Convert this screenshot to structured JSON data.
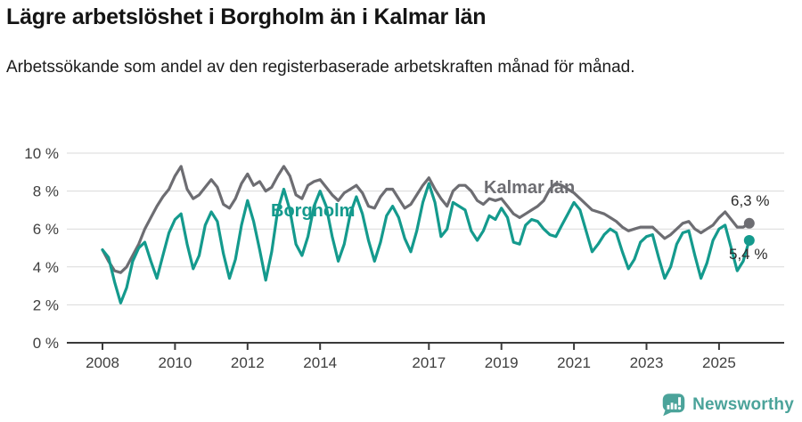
{
  "header": {
    "title": "Lägre arbetslöshet i Borgholm än i Kalmar län",
    "subtitle": "Arbetssökande som andel av den registerbaserade arbetskraften månad för månad."
  },
  "chart": {
    "y_axis": {
      "tick_values": [
        0,
        2,
        4,
        6,
        8,
        10
      ],
      "tick_labels": [
        "0 %",
        "2 %",
        "4 %",
        "6 %",
        "8 %",
        "10 %"
      ]
    },
    "x_axis": {
      "tick_years": [
        2008,
        2010,
        2012,
        2014,
        2017,
        2019,
        2021,
        2023,
        2025
      ],
      "tick_labels": [
        "2008",
        "2010",
        "2012",
        "2014",
        "2017",
        "2019",
        "2021",
        "2023",
        "2025"
      ]
    },
    "labels": {
      "borgholm_series_label": "Borgholm",
      "kalmar_series_label": "Kalmar län",
      "kalmar_end_label": "6,3 %",
      "borgholm_end_label": "5,4 %"
    },
    "colors": {
      "borgholm_line": "#149a8d",
      "kalmar_line": "#6d6d72",
      "gridline": "#d9d9d9",
      "axis": "#3a3a3a",
      "tick_text": "#3f3f3f",
      "end_label_text": "#2b2b2b"
    }
  },
  "chart_data": {
    "type": "line",
    "title": "Lägre arbetslöshet i Borgholm än i Kalmar län",
    "subtitle": "Arbetssökande som andel av den registerbaserade arbetskraften månad för månad.",
    "unit": "percent of registered labour force",
    "x_unit": "decimal_year",
    "x_start": 2008.0,
    "x_step_years": 0.166667,
    "x_note": "points at Jan, Mar, May, Jul, Sep, Nov each year 2008 through Nov 2025 (values estimated from plot)",
    "ylim": [
      0,
      10
    ],
    "grid": "horizontal",
    "legend_position": "inline-labels",
    "series": [
      {
        "name": "Kalmar län",
        "color": "#6d6d72",
        "end_value_label": "6,3 %",
        "end_value": 6.3,
        "values": [
          4.9,
          4.3,
          3.8,
          3.7,
          4.0,
          4.6,
          5.2,
          6.0,
          6.6,
          7.2,
          7.7,
          8.1,
          8.8,
          9.3,
          8.1,
          7.6,
          7.8,
          8.2,
          8.6,
          8.2,
          7.3,
          7.1,
          7.6,
          8.4,
          8.9,
          8.3,
          8.5,
          8.0,
          8.2,
          8.8,
          9.3,
          8.8,
          7.8,
          7.6,
          8.3,
          8.5,
          8.6,
          8.2,
          7.8,
          7.5,
          7.9,
          8.1,
          8.3,
          7.9,
          7.2,
          7.1,
          7.7,
          8.1,
          8.1,
          7.6,
          7.1,
          7.3,
          7.8,
          8.3,
          8.7,
          8.1,
          7.6,
          7.2,
          8.0,
          8.3,
          8.3,
          8.0,
          7.5,
          7.3,
          7.6,
          7.5,
          7.6,
          7.2,
          6.8,
          6.6,
          6.8,
          7.0,
          7.2,
          7.5,
          8.1,
          8.4,
          8.3,
          8.1,
          7.9,
          7.6,
          7.3,
          7.0,
          6.9,
          6.8,
          6.6,
          6.4,
          6.1,
          5.9,
          6.0,
          6.1,
          6.1,
          6.1,
          5.8,
          5.5,
          5.7,
          6.0,
          6.3,
          6.4,
          6.0,
          5.8,
          6.0,
          6.2,
          6.6,
          6.9,
          6.5,
          6.1,
          6.1,
          6.3
        ]
      },
      {
        "name": "Borgholm",
        "color": "#149a8d",
        "end_value_label": "5,4 %",
        "end_value": 5.4,
        "values": [
          4.9,
          4.5,
          3.2,
          2.1,
          2.9,
          4.3,
          5.0,
          5.3,
          4.3,
          3.4,
          4.6,
          5.8,
          6.5,
          6.8,
          5.2,
          3.9,
          4.6,
          6.2,
          6.9,
          6.4,
          4.7,
          3.4,
          4.4,
          6.2,
          7.5,
          6.4,
          4.9,
          3.3,
          4.8,
          7.0,
          8.1,
          7.0,
          5.2,
          4.6,
          5.6,
          7.2,
          8.0,
          7.2,
          5.6,
          4.3,
          5.2,
          6.8,
          7.7,
          6.8,
          5.4,
          4.3,
          5.3,
          6.7,
          7.2,
          6.6,
          5.5,
          4.8,
          5.9,
          7.4,
          8.4,
          7.4,
          5.6,
          6.0,
          7.4,
          7.2,
          7.0,
          5.9,
          5.4,
          5.9,
          6.7,
          6.5,
          7.1,
          6.6,
          5.3,
          5.2,
          6.2,
          6.5,
          6.4,
          6.0,
          5.7,
          5.6,
          6.2,
          6.8,
          7.4,
          7.0,
          5.9,
          4.8,
          5.2,
          5.7,
          6.0,
          5.8,
          4.8,
          3.9,
          4.4,
          5.3,
          5.6,
          5.7,
          4.5,
          3.4,
          4.0,
          5.2,
          5.8,
          5.9,
          4.6,
          3.4,
          4.2,
          5.4,
          6.0,
          6.2,
          5.0,
          3.8,
          4.3,
          5.4
        ]
      }
    ]
  },
  "footer": {
    "brand": "Newsworthy",
    "brand_color": "#4ba39a",
    "logo_color": "#4ba39a"
  }
}
